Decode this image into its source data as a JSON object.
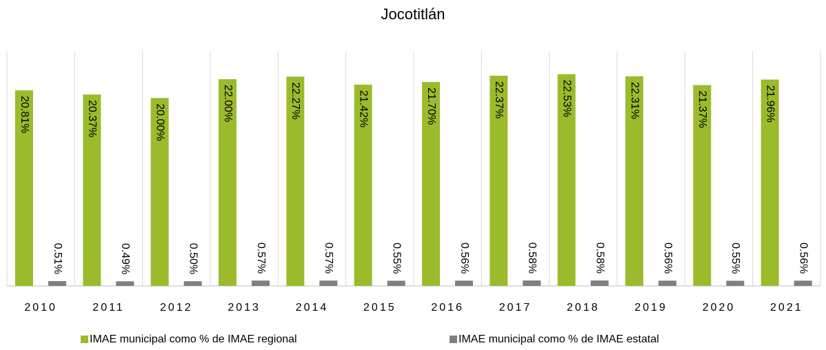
{
  "chart_data": {
    "type": "bar",
    "title": "Jocotitlán",
    "categories": [
      "2010",
      "2011",
      "2012",
      "2013",
      "2014",
      "2015",
      "2016",
      "2017",
      "2018",
      "2019",
      "2020",
      "2021"
    ],
    "series": [
      {
        "name": "IMAE municipal como % de IMAE regional",
        "color": "#9bbb2c",
        "values": [
          20.81,
          20.37,
          20.0,
          22.0,
          22.27,
          21.42,
          21.7,
          22.37,
          22.53,
          22.31,
          21.37,
          21.96
        ],
        "value_labels": [
          "20.81%",
          "20.37%",
          "20.00%",
          "22.00%",
          "22.27%",
          "21.42%",
          "21.70%",
          "22.37%",
          "22.53%",
          "22.31%",
          "21.37%",
          "21.96%"
        ]
      },
      {
        "name": "IMAE municipal como % de IMAE estatal",
        "color": "#7f7f7f",
        "values": [
          0.51,
          0.49,
          0.5,
          0.57,
          0.57,
          0.55,
          0.56,
          0.58,
          0.58,
          0.56,
          0.55,
          0.56
        ],
        "value_labels": [
          "0.51%",
          "0.49%",
          "0.50%",
          "0.57%",
          "0.57%",
          "0.55%",
          "0.56%",
          "0.58%",
          "0.58%",
          "0.56%",
          "0.55%",
          "0.56%"
        ]
      }
    ],
    "ylim": [
      0,
      25
    ],
    "legend": "bottom"
  }
}
